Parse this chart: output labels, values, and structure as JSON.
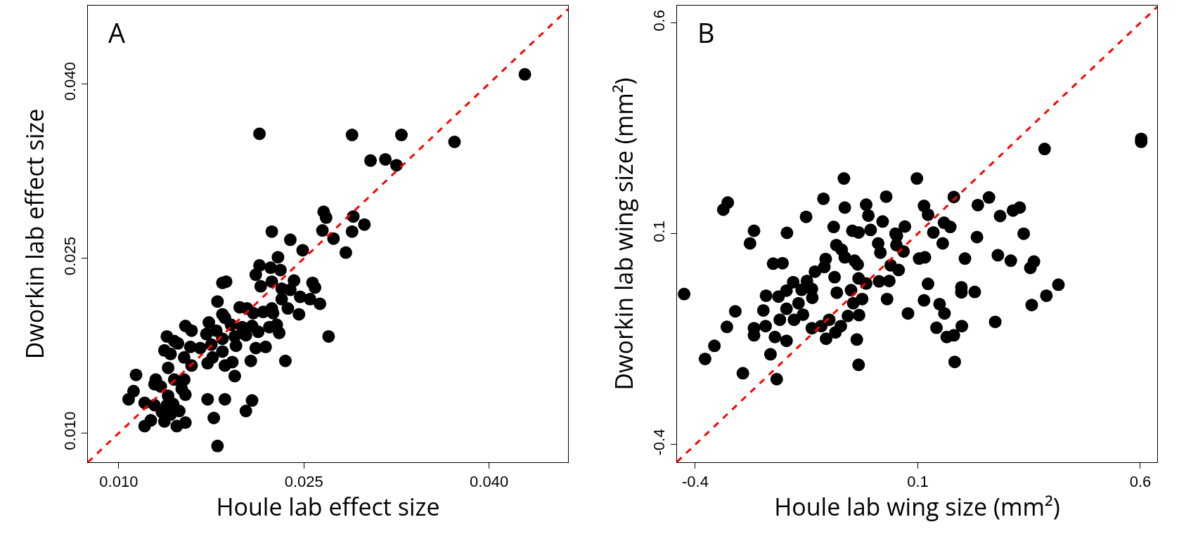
{
  "chart_data": [
    {
      "type": "scatter",
      "title": "A",
      "xlabel": "Houle lab effect size",
      "ylabel": "Dworkin lab effect size",
      "marker": "circle",
      "grid": false,
      "xlim": [
        0.0075,
        0.0464
      ],
      "ylim": [
        0.0075,
        0.0467
      ],
      "xticks": [
        {
          "value": 0.01,
          "label": "0.010"
        },
        {
          "value": 0.025,
          "label": "0.025"
        },
        {
          "value": 0.04,
          "label": "0.040"
        }
      ],
      "yticks": [
        {
          "value": 0.01,
          "label": "0.010"
        },
        {
          "value": 0.025,
          "label": "0.025"
        },
        {
          "value": 0.04,
          "label": "0.040"
        }
      ],
      "series": [
        {
          "type": "scatter",
          "color": "#000000",
          "x": [
            0.0429,
            0.0214,
            0.0289,
            0.0329,
            0.0372,
            0.0304,
            0.0316,
            0.0325,
            0.0266,
            0.0268,
            0.029,
            0.0299,
            0.0224,
            0.0265,
            0.0289,
            0.0239,
            0.0274,
            0.0249,
            0.0284,
            0.0229,
            0.0214,
            0.0223,
            0.0231,
            0.0211,
            0.0242,
            0.0257,
            0.0259,
            0.0215,
            0.0224,
            0.0232,
            0.0239,
            0.0247,
            0.0255,
            0.0263,
            0.0232,
            0.0237,
            0.0246,
            0.0184,
            0.0187,
            0.018,
            0.0198,
            0.0204,
            0.0209,
            0.0217,
            0.0224,
            0.0225,
            0.0184,
            0.0186,
            0.0173,
            0.0191,
            0.02,
            0.0208,
            0.0213,
            0.0222,
            0.0228,
            0.023,
            0.0154,
            0.0159,
            0.0171,
            0.0179,
            0.0184,
            0.0194,
            0.0203,
            0.0139,
            0.0145,
            0.0148,
            0.0158,
            0.0166,
            0.0175,
            0.0195,
            0.0211,
            0.0219,
            0.027,
            0.0137,
            0.0142,
            0.0153,
            0.0159,
            0.0172,
            0.0176,
            0.0184,
            0.0186,
            0.0192,
            0.0207,
            0.0235,
            0.0194,
            0.014,
            0.0114,
            0.0145,
            0.0153,
            0.013,
            0.0129,
            0.0134,
            0.0151,
            0.0154,
            0.0112,
            0.0108,
            0.0121,
            0.014,
            0.0129,
            0.0139,
            0.0144,
            0.0149,
            0.0135,
            0.0142,
            0.0126,
            0.0121,
            0.0137,
            0.0147,
            0.0154,
            0.0172,
            0.0186,
            0.0208,
            0.0203,
            0.0177,
            0.018
          ],
          "values": [
            0.0408,
            0.0357,
            0.0356,
            0.0356,
            0.035,
            0.0334,
            0.0335,
            0.033,
            0.029,
            0.0285,
            0.0286,
            0.0279,
            0.0273,
            0.0274,
            0.0273,
            0.0266,
            0.0267,
            0.0257,
            0.0255,
            0.0251,
            0.0244,
            0.0242,
            0.024,
            0.0236,
            0.0231,
            0.0229,
            0.0225,
            0.0226,
            0.023,
            0.0224,
            0.0223,
            0.0217,
            0.0215,
            0.0211,
            0.0215,
            0.0207,
            0.0202,
            0.0229,
            0.023,
            0.0213,
            0.0208,
            0.0207,
            0.0203,
            0.0204,
            0.0207,
            0.0203,
            0.0202,
            0.0199,
            0.0195,
            0.0193,
            0.0191,
            0.0192,
            0.0187,
            0.0191,
            0.0193,
            0.0186,
            0.0192,
            0.0188,
            0.0185,
            0.0188,
            0.0181,
            0.0183,
            0.0184,
            0.0183,
            0.0179,
            0.0177,
            0.0174,
            0.0173,
            0.0176,
            0.0175,
            0.0173,
            0.0174,
            0.0183,
            0.0171,
            0.0168,
            0.0165,
            0.0158,
            0.016,
            0.0165,
            0.017,
            0.0158,
            0.0161,
            0.0162,
            0.0162,
            0.0149,
            0.0156,
            0.015,
            0.0146,
            0.0146,
            0.0146,
            0.0142,
            0.014,
            0.0138,
            0.0133,
            0.0136,
            0.0129,
            0.0126,
            0.0132,
            0.0124,
            0.0124,
            0.0125,
            0.0119,
            0.0118,
            0.0116,
            0.0111,
            0.0106,
            0.011,
            0.0106,
            0.0109,
            0.0129,
            0.0129,
            0.0128,
            0.0119,
            0.0113,
            0.0089
          ]
        },
        {
          "type": "line",
          "color": "#ff0000",
          "line_style": "dashed",
          "marker": "none",
          "x": [
            0.0075,
            0.0464
          ],
          "values": [
            0.0075,
            0.0464
          ]
        }
      ]
    },
    {
      "type": "scatter",
      "title": "B",
      "xlabel": "Houle lab wing size (mm²)",
      "ylabel": "Dworkin lab wing size (mm²)",
      "marker": "circle",
      "grid": false,
      "xlim": [
        -0.441,
        0.638
      ],
      "ylim": [
        -0.442,
        0.641
      ],
      "xticks": [
        -0.4,
        0.1,
        0.6
      ],
      "yticks": [
        -0.4,
        0.1,
        0.6
      ],
      "series": [
        {
          "type": "scatter",
          "color": "#000000",
          "x": [
            0.602,
            0.602,
            0.385,
            -0.066,
            0.098,
            -0.112,
            -0.327,
            -0.337,
            0.029,
            -0.064,
            -0.016,
            -0.011,
            0.021,
            0.114,
            0.123,
            0.181,
            0.235,
            0.26,
            0.285,
            0.314,
            0.329,
            -0.151,
            -0.089,
            -0.047,
            -0.033,
            -0.006,
            0.071,
            0.05,
            0.159,
            0.173,
            0.135,
            -0.268,
            -0.194,
            0.338,
            0.233,
            -0.277,
            -0.083,
            -0.071,
            -0.064,
            -0.042,
            -0.035,
            0.011,
            0.016,
            0.053,
            0.052,
            0.068,
            0.039,
            0.057,
            0.156,
            0.103,
            0.116,
            0.206,
            0.28,
            0.309,
            0.361,
            0.353,
            0.416,
            0.389,
            0.356,
            0.274,
            0.123,
            0.198,
            0.198,
            0.228,
            0.114,
            0.149,
            0.16,
            0.142,
            0.165,
            0.181,
            0.199,
            0.183,
            0.078,
            0.031,
            0.013,
            0.036,
            -0.033,
            -0.016,
            -0.025,
            -0.045,
            -0.032,
            -0.057,
            -0.05,
            -0.082,
            -0.087,
            -0.107,
            -0.11,
            -0.131,
            -0.149,
            -0.161,
            -0.138,
            -0.137,
            -0.18,
            -0.195,
            -0.213,
            -0.168,
            -0.195,
            -0.178,
            -0.158,
            -0.21,
            -0.225,
            -0.204,
            -0.241,
            -0.247,
            -0.242,
            -0.268,
            -0.268,
            -0.221,
            -0.195,
            -0.138,
            -0.117,
            -0.099,
            -0.106,
            -0.085,
            -0.073,
            -0.037,
            -0.033,
            -0.231,
            -0.217,
            -0.293,
            -0.357,
            -0.378,
            -0.329,
            -0.31,
            -0.425
          ],
          "values": [
            0.325,
            0.318,
            0.301,
            0.231,
            0.231,
            0.183,
            0.174,
            0.157,
            0.188,
            0.162,
            0.169,
            0.143,
            0.129,
            0.166,
            0.145,
            0.187,
            0.168,
            0.186,
            0.142,
            0.155,
            0.162,
            0.14,
            0.116,
            0.107,
            0.103,
            0.109,
            0.117,
            0.1,
            0.126,
            0.116,
            0.103,
            0.107,
            0.102,
            0.1,
            0.092,
            0.077,
            0.073,
            0.062,
            0.044,
            0.036,
            0.027,
            0.077,
            0.055,
            0.095,
            0.073,
            0.058,
            0.025,
            0.014,
            0.077,
            0.041,
            0.044,
            0.041,
            0.049,
            0.036,
            0.034,
            0.019,
            -0.021,
            -0.047,
            -0.069,
            -0.109,
            -0.019,
            -0.027,
            -0.039,
            -0.038,
            -0.058,
            -0.067,
            -0.089,
            -0.123,
            -0.145,
            -0.141,
            -0.119,
            -0.204,
            -0.089,
            -0.055,
            -0.013,
            -0.012,
            -0.006,
            -0.018,
            -0.055,
            -0.065,
            -0.093,
            -0.095,
            -0.034,
            -0.04,
            -0.003,
            0.04,
            0.021,
            0.01,
            -0.012,
            -0.033,
            -0.031,
            -0.052,
            -0.015,
            -0.035,
            -0.049,
            -0.065,
            -0.078,
            -0.104,
            -0.092,
            -0.104,
            0.029,
            0.03,
            -0.047,
            -0.082,
            -0.119,
            -0.124,
            -0.141,
            -0.145,
            -0.154,
            -0.124,
            -0.119,
            -0.104,
            -0.149,
            -0.134,
            -0.119,
            -0.151,
            -0.211,
            -0.186,
            -0.245,
            -0.231,
            -0.166,
            -0.197,
            -0.121,
            -0.084,
            -0.043
          ]
        },
        {
          "type": "line",
          "color": "#ff0000",
          "line_style": "dashed",
          "marker": "none",
          "x": [
            -0.441,
            0.638
          ],
          "values": [
            -0.441,
            0.638
          ]
        }
      ]
    }
  ]
}
